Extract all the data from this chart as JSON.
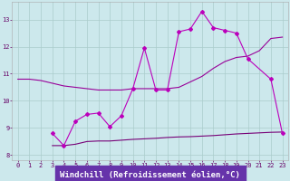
{
  "bg_color": "#cce8ec",
  "label_bg_color": "#6633aa",
  "grid_color": "#aacccc",
  "line_color1": "#990099",
  "line_color2": "#bb00bb",
  "line_color3": "#770077",
  "markersize": 2.0,
  "x": [
    0,
    1,
    2,
    3,
    4,
    5,
    6,
    7,
    8,
    9,
    10,
    11,
    12,
    13,
    14,
    15,
    16,
    17,
    18,
    19,
    20,
    21,
    22,
    23
  ],
  "line1_y": [
    10.8,
    10.8,
    10.75,
    10.65,
    10.55,
    10.5,
    10.45,
    10.4,
    10.4,
    10.4,
    10.45,
    10.45,
    10.45,
    10.45,
    10.5,
    10.7,
    10.9,
    11.2,
    11.45,
    11.6,
    11.65,
    11.85,
    12.3,
    12.35
  ],
  "line2_y": [
    null,
    null,
    null,
    8.8,
    8.35,
    9.25,
    9.5,
    9.55,
    9.05,
    9.45,
    10.45,
    11.95,
    10.4,
    10.4,
    12.55,
    12.65,
    13.3,
    12.7,
    12.6,
    12.5,
    11.55,
    null,
    10.8,
    8.8
  ],
  "line3_y": [
    null,
    null,
    null,
    8.35,
    8.35,
    8.4,
    8.5,
    8.52,
    8.52,
    8.55,
    8.58,
    8.6,
    8.62,
    8.65,
    8.67,
    8.68,
    8.7,
    8.72,
    8.75,
    8.78,
    8.8,
    8.82,
    8.84,
    8.85
  ],
  "xlabel": "Windchill (Refroidissement éolien,°C)",
  "xlabel_fontsize": 6.5,
  "xlabel_color": "#ffffff",
  "tick_color": "#660066",
  "ylim": [
    7.8,
    13.65
  ],
  "xlim": [
    -0.5,
    23.5
  ],
  "yticks": [
    8,
    9,
    10,
    11,
    12,
    13
  ],
  "xticks": [
    0,
    1,
    2,
    3,
    4,
    5,
    6,
    7,
    8,
    9,
    10,
    11,
    12,
    13,
    14,
    15,
    16,
    17,
    18,
    19,
    20,
    21,
    22,
    23
  ],
  "tick_fontsize": 5.0,
  "figsize": [
    3.2,
    2.0
  ],
  "dpi": 100
}
